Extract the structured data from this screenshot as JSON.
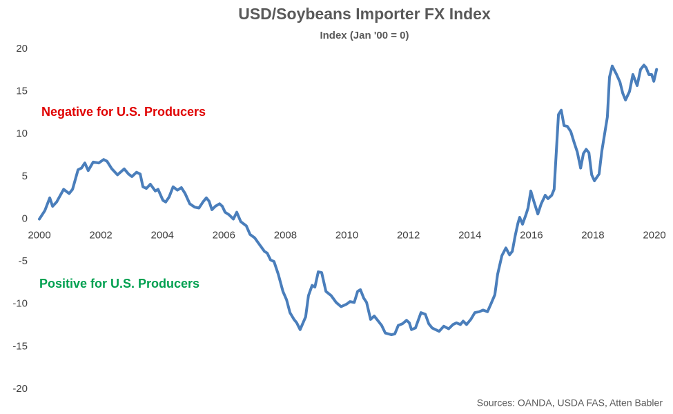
{
  "chart_data": {
    "type": "line",
    "title": "USD/Soybeans Importer FX Index",
    "subtitle": "Index (Jan '00 = 0)",
    "source": "Sources: OANDA, USDA FAS, Atten Babler",
    "annotations": [
      {
        "text": "Negative for U.S. Producers",
        "color": "#e00000"
      },
      {
        "text": "Positive for U.S. Producers",
        "color": "#00a050"
      }
    ],
    "color": "#4a7ebb",
    "xlim": [
      2000,
      2020.2
    ],
    "xticks": [
      2000,
      2002,
      2004,
      2006,
      2008,
      2010,
      2012,
      2014,
      2016,
      2018,
      2020
    ],
    "ylim": [
      -20,
      20
    ],
    "yticks": [
      -20,
      -15,
      -10,
      -5,
      0,
      5,
      10,
      15,
      20
    ],
    "grid": false,
    "x": [
      2000.0,
      2000.18,
      2000.34,
      2000.43,
      2000.56,
      2000.79,
      2000.97,
      2001.08,
      2001.26,
      2001.37,
      2001.48,
      2001.59,
      2001.75,
      2001.93,
      2002.09,
      2002.2,
      2002.36,
      2002.54,
      2002.76,
      2002.9,
      2003.01,
      2003.16,
      2003.28,
      2003.37,
      2003.48,
      2003.61,
      2003.77,
      2003.86,
      2004.02,
      2004.11,
      2004.22,
      2004.35,
      2004.49,
      2004.62,
      2004.74,
      2004.89,
      2005.05,
      2005.19,
      2005.32,
      2005.43,
      2005.52,
      2005.61,
      2005.72,
      2005.86,
      2005.95,
      2006.04,
      2006.17,
      2006.31,
      2006.42,
      2006.55,
      2006.73,
      2006.85,
      2007.0,
      2007.16,
      2007.32,
      2007.41,
      2007.52,
      2007.63,
      2007.77,
      2007.92,
      2008.04,
      2008.15,
      2008.28,
      2008.37,
      2008.48,
      2008.66,
      2008.75,
      2008.87,
      2008.96,
      2009.07,
      2009.18,
      2009.32,
      2009.49,
      2009.65,
      2009.81,
      2009.99,
      2010.1,
      2010.24,
      2010.35,
      2010.44,
      2010.55,
      2010.64,
      2010.77,
      2010.89,
      2011.02,
      2011.13,
      2011.25,
      2011.45,
      2011.56,
      2011.67,
      2011.81,
      2011.94,
      2012.03,
      2012.1,
      2012.23,
      2012.41,
      2012.55,
      2012.66,
      2012.77,
      2013.0,
      2013.15,
      2013.31,
      2013.45,
      2013.56,
      2013.69,
      2013.78,
      2013.89,
      2014.03,
      2014.16,
      2014.3,
      2014.43,
      2014.57,
      2014.68,
      2014.81,
      2014.9,
      2015.04,
      2015.17,
      2015.29,
      2015.38,
      2015.47,
      2015.56,
      2015.62,
      2015.71,
      2015.82,
      2015.89,
      2015.98,
      2016.07,
      2016.21,
      2016.32,
      2016.45,
      2016.54,
      2016.66,
      2016.74,
      2016.81,
      2016.88,
      2016.97,
      2017.06,
      2017.17,
      2017.28,
      2017.4,
      2017.49,
      2017.6,
      2017.69,
      2017.78,
      2017.87,
      2017.96,
      2018.05,
      2018.2,
      2018.29,
      2018.38,
      2018.47,
      2018.54,
      2018.63,
      2018.77,
      2018.88,
      2018.97,
      2019.06,
      2019.19,
      2019.3,
      2019.44,
      2019.55,
      2019.66,
      2019.73,
      2019.82,
      2019.91,
      2019.98,
      2020.07
    ],
    "values": [
      0,
      1,
      2.5,
      1.5,
      2,
      3.5,
      3,
      3.5,
      5.8,
      6,
      6.6,
      5.7,
      6.7,
      6.6,
      7,
      6.8,
      5.9,
      5.2,
      5.9,
      5.3,
      5,
      5.5,
      5.3,
      3.8,
      3.6,
      4.1,
      3.3,
      3.5,
      2.2,
      2,
      2.6,
      3.8,
      3.4,
      3.7,
      3,
      1.8,
      1.4,
      1.3,
      2,
      2.5,
      2.1,
      1.1,
      1.5,
      1.8,
      1.5,
      0.8,
      0.5,
      0,
      0.8,
      -0.3,
      -0.8,
      -1.8,
      -2.2,
      -3,
      -3.8,
      -4,
      -4.8,
      -5,
      -6.5,
      -8.5,
      -9.5,
      -11,
      -11.8,
      -12.2,
      -13,
      -11.5,
      -9,
      -7.8,
      -8,
      -6.2,
      -6.3,
      -8.5,
      -9,
      -9.8,
      -10.3,
      -10,
      -9.7,
      -9.8,
      -8.5,
      -8.3,
      -9.3,
      -9.8,
      -11.8,
      -11.4,
      -12,
      -12.5,
      -13.4,
      -13.6,
      -13.5,
      -12.5,
      -12.3,
      -11.9,
      -12.2,
      -13,
      -12.8,
      -11,
      -11.2,
      -12.3,
      -12.8,
      -13.2,
      -12.6,
      -12.9,
      -12.4,
      -12.2,
      -12.4,
      -12,
      -12.4,
      -11.8,
      -11,
      -10.9,
      -10.7,
      -10.9,
      -10,
      -8.9,
      -6.5,
      -4.3,
      -3.4,
      -4.2,
      -3.8,
      -2,
      -0.5,
      0.2,
      -0.6,
      0.5,
      1.3,
      3.3,
      2.2,
      0.6,
      1.8,
      2.8,
      2.4,
      2.8,
      3.5,
      8,
      12.3,
      12.8,
      11,
      10.9,
      10.3,
      8.9,
      7.9,
      6,
      7.7,
      8.2,
      7.8,
      5.2,
      4.5,
      5.3,
      8,
      10,
      12,
      16.7,
      18,
      17,
      16.1,
      14.8,
      14,
      15,
      17,
      15.7,
      17.6,
      18.1,
      17.8,
      17,
      17,
      16.2,
      17.6
    ]
  }
}
